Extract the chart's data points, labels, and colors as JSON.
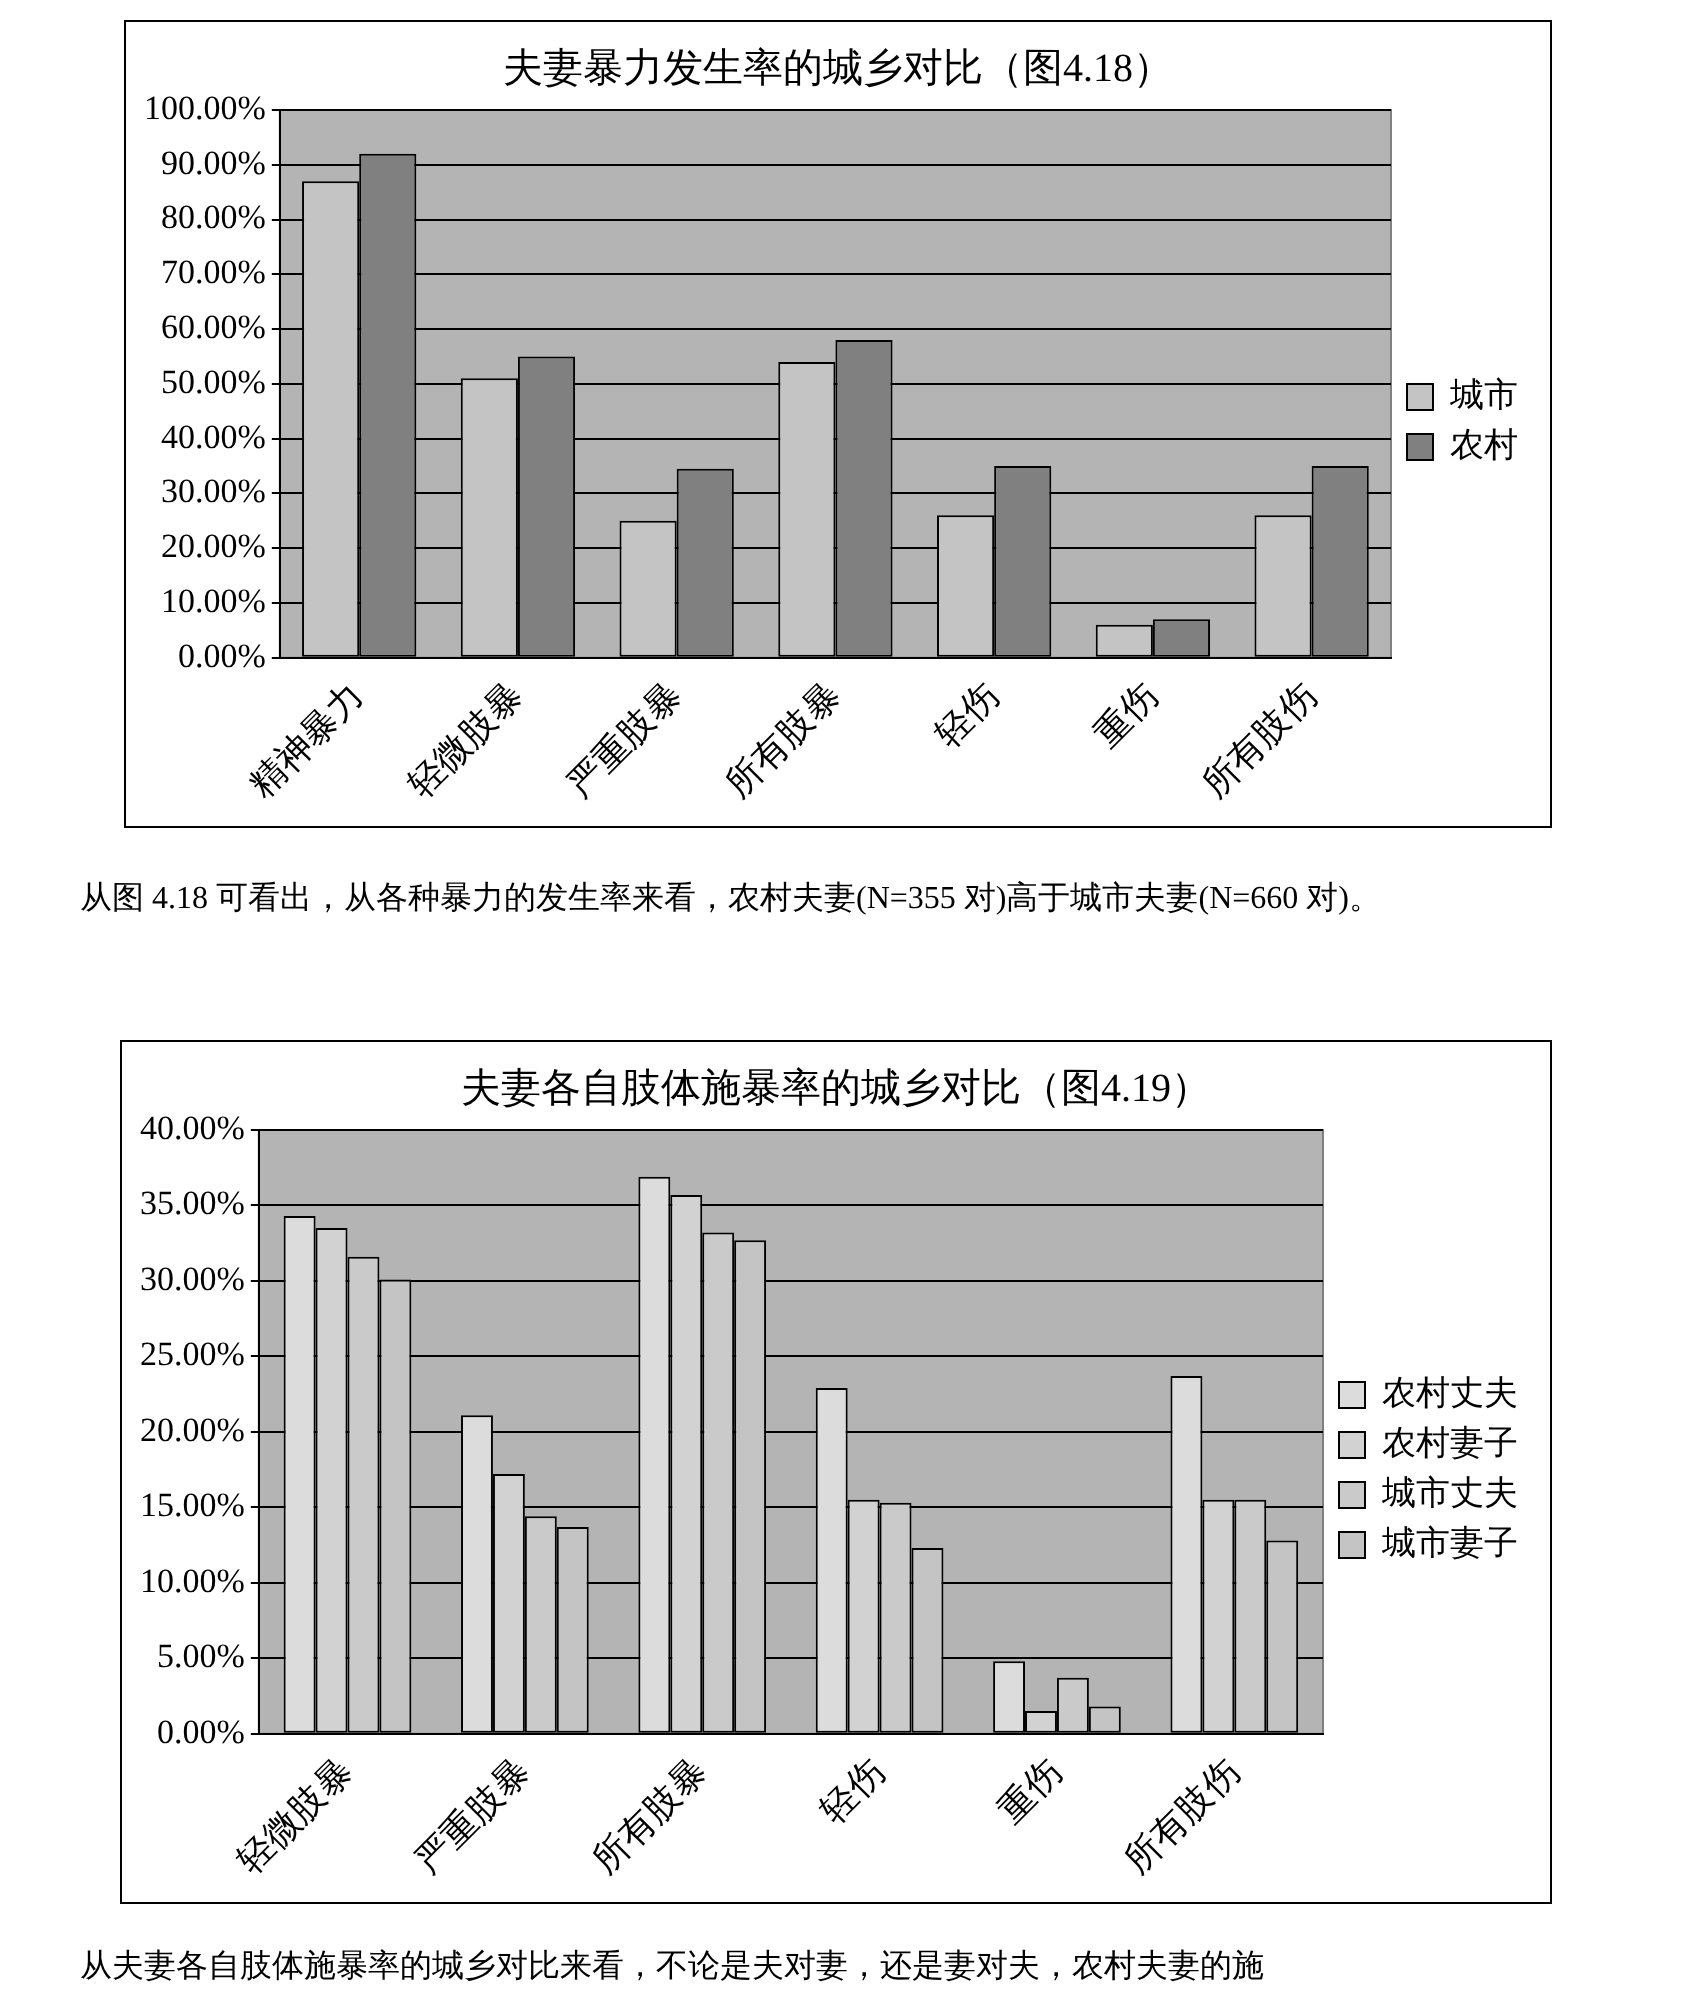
{
  "chart_data": [
    {
      "type": "bar",
      "title": "夫妻暴力发生率的城乡对比（图4.18）",
      "categories": [
        "精神暴力",
        "轻微肢暴",
        "严重肢暴",
        "所有肢暴",
        "轻伤",
        "重伤",
        "所有肢伤"
      ],
      "series": [
        {
          "name": "城市",
          "color": "#c4c4c4",
          "values": [
            87,
            51,
            25,
            54,
            26,
            6,
            26
          ]
        },
        {
          "name": "农村",
          "color": "#808080",
          "values": [
            92,
            55,
            34.5,
            58,
            35,
            7,
            35
          ]
        }
      ],
      "ylim": [
        0,
        100
      ],
      "yticks": [
        {
          "value": 0,
          "label": "0.00%"
        },
        {
          "value": 10,
          "label": "10.00%"
        },
        {
          "value": 20,
          "label": "20.00%"
        },
        {
          "value": 30,
          "label": "30.00%"
        },
        {
          "value": 40,
          "label": "40.00%"
        },
        {
          "value": 50,
          "label": "50.00%"
        },
        {
          "value": 60,
          "label": "60.00%"
        },
        {
          "value": 70,
          "label": "70.00%"
        },
        {
          "value": 80,
          "label": "80.00%"
        },
        {
          "value": 90,
          "label": "90.00%"
        },
        {
          "value": 100,
          "label": "100.00%"
        }
      ],
      "grid": "y",
      "legend": "right",
      "annotations": [
        "从图 4.18 可看出，从各种暴力的发生率来看，农村夫妻(N=355 对)高于城市夫妻(N=660 对)。"
      ]
    },
    {
      "type": "bar",
      "title": "夫妻各自肢体施暴率的城乡对比（图4.19）",
      "categories": [
        "轻微肢暴",
        "严重肢暴",
        "所有肢暴",
        "轻伤",
        "重伤",
        "所有肢伤"
      ],
      "series": [
        {
          "name": "农村丈夫",
          "color": "#dcdcdc",
          "values": [
            34.3,
            21.1,
            36.9,
            22.9,
            4.8,
            23.7
          ]
        },
        {
          "name": "农村妻子",
          "color": "#d2d2d2",
          "values": [
            33.5,
            17.2,
            35.7,
            15.5,
            1.5,
            15.5
          ]
        },
        {
          "name": "城市丈夫",
          "color": "#cacaca",
          "values": [
            31.6,
            14.4,
            33.2,
            15.3,
            3.7,
            15.5
          ]
        },
        {
          "name": "城市妻子",
          "color": "#c4c4c4",
          "values": [
            30.1,
            13.7,
            32.7,
            12.3,
            1.8,
            12.8
          ]
        }
      ],
      "ylim": [
        0,
        40
      ],
      "yticks": [
        {
          "value": 0,
          "label": "0.00%"
        },
        {
          "value": 5,
          "label": "5.00%"
        },
        {
          "value": 10,
          "label": "10.00%"
        },
        {
          "value": 15,
          "label": "15.00%"
        },
        {
          "value": 20,
          "label": "20.00%"
        },
        {
          "value": 25,
          "label": "25.00%"
        },
        {
          "value": 30,
          "label": "30.00%"
        },
        {
          "value": 35,
          "label": "35.00%"
        },
        {
          "value": 40,
          "label": "40.00%"
        }
      ],
      "grid": "y",
      "legend": "right",
      "annotations": [
        "从夫妻各自肢体施暴率的城乡对比来看，不论是夫对妻，还是妻对夫，农村夫妻的施"
      ]
    }
  ]
}
